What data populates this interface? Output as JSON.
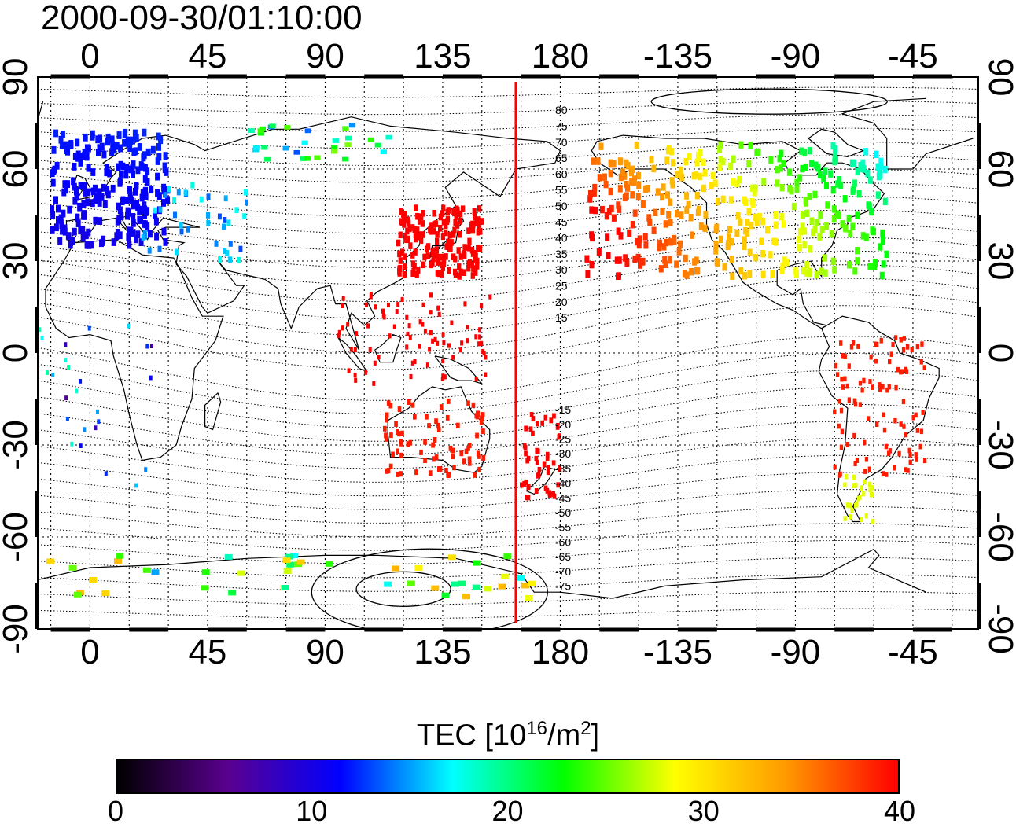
{
  "title": "2000-09-30/01:10:00",
  "map": {
    "x_tick_labels": [
      "0",
      "45",
      "90",
      "135",
      "180",
      "-135",
      "-90",
      "-45"
    ],
    "y_tick_labels": [
      "90",
      "60",
      "30",
      "0",
      "-30",
      "-60",
      "-90"
    ],
    "meridian_marker_lon": 163,
    "meridian_marker_color": "#ff0000",
    "mlat_contour_labels_north": [
      "80",
      "75",
      "70",
      "65",
      "60",
      "55",
      "50",
      "45",
      "40",
      "35",
      "30",
      "25",
      "20",
      "15"
    ],
    "mlat_contour_labels_south": [
      "-15",
      "-20",
      "-25",
      "-30",
      "-35",
      "-40",
      "-45",
      "-50",
      "-55",
      "-60",
      "-65",
      "-70",
      "-75"
    ]
  },
  "colorbar": {
    "label_main": "TEC  [10",
    "label_exp1": "16",
    "label_mid": "/m",
    "label_exp2": "2",
    "label_end": "]",
    "min": 0,
    "max": 40,
    "tick_labels": [
      "0",
      "10",
      "20",
      "30",
      "40"
    ],
    "colormap": [
      "#000000",
      "#5a0090",
      "#0000ff",
      "#00ffff",
      "#00ff00",
      "#ffff00",
      "#ff9900",
      "#ff0000"
    ]
  }
}
